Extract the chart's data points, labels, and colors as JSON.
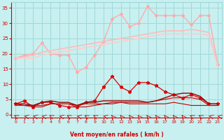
{
  "x": [
    0,
    1,
    2,
    3,
    4,
    5,
    6,
    7,
    8,
    9,
    10,
    11,
    12,
    13,
    14,
    15,
    16,
    17,
    18,
    19,
    20,
    21,
    22,
    23
  ],
  "background_color": "#c8f0f0",
  "grid_color": "#a0d8d8",
  "xlabel": "Vent moyen/en rafales ( km/h )",
  "xlabel_color": "#cc0000",
  "tick_color": "#cc0000",
  "ylim": [
    -1,
    37
  ],
  "xlim": [
    -0.5,
    23.5
  ],
  "yticks": [
    0,
    5,
    10,
    15,
    20,
    25,
    30,
    35
  ],
  "lines": [
    {
      "name": "line1_pink_upper_spiky",
      "color": "#ffaaaa",
      "lw": 1.0,
      "marker": "D",
      "markersize": 2.0,
      "values": [
        18.5,
        19.5,
        20.0,
        23.5,
        20.0,
        19.5,
        19.5,
        14.0,
        15.5,
        19.5,
        24.0,
        31.5,
        33.0,
        29.0,
        30.0,
        35.5,
        32.5,
        32.5,
        32.5,
        32.5,
        29.5,
        32.5,
        32.5,
        16.5
      ]
    },
    {
      "name": "line2_pink_upper_trend",
      "color": "#ffbbbb",
      "lw": 1.2,
      "marker": null,
      "markersize": 0,
      "values": [
        18.5,
        19.0,
        19.5,
        20.5,
        21.0,
        21.5,
        22.0,
        22.5,
        23.0,
        23.5,
        24.0,
        24.5,
        25.0,
        25.5,
        26.0,
        26.5,
        27.0,
        27.5,
        27.5,
        27.5,
        28.0,
        27.5,
        27.0,
        16.0
      ]
    },
    {
      "name": "line3_pink_lower_trend",
      "color": "#ffcccc",
      "lw": 1.2,
      "marker": null,
      "markersize": 0,
      "values": [
        18.5,
        18.5,
        18.5,
        19.5,
        20.0,
        20.5,
        21.0,
        21.5,
        22.0,
        22.5,
        23.0,
        23.5,
        24.0,
        24.5,
        25.0,
        25.5,
        26.0,
        26.5,
        26.5,
        26.5,
        26.5,
        26.5,
        26.0,
        16.0
      ]
    },
    {
      "name": "line4_red_spiky",
      "color": "#dd0000",
      "lw": 0.9,
      "marker": "*",
      "markersize": 3.5,
      "values": [
        3.5,
        4.5,
        2.5,
        4.0,
        4.0,
        3.0,
        2.5,
        2.5,
        4.0,
        4.5,
        9.0,
        12.5,
        9.0,
        7.5,
        10.5,
        10.5,
        9.5,
        7.5,
        6.5,
        5.5,
        6.5,
        5.5,
        3.5,
        3.5
      ]
    },
    {
      "name": "line5_red_upper_flat",
      "color": "#cc0000",
      "lw": 0.8,
      "marker": null,
      "markersize": 0,
      "values": [
        3.0,
        3.0,
        3.0,
        3.0,
        3.5,
        3.5,
        3.5,
        3.0,
        3.5,
        3.5,
        3.5,
        4.0,
        4.0,
        4.0,
        4.0,
        4.0,
        4.5,
        5.0,
        5.5,
        5.5,
        5.5,
        5.0,
        3.0,
        3.0
      ]
    },
    {
      "name": "line6_red_mid_flat",
      "color": "#bb0000",
      "lw": 0.8,
      "marker": null,
      "markersize": 0,
      "values": [
        3.5,
        3.0,
        2.5,
        2.5,
        3.5,
        3.5,
        3.5,
        2.5,
        2.5,
        3.0,
        3.5,
        3.5,
        4.0,
        3.5,
        3.5,
        3.5,
        3.5,
        3.5,
        4.0,
        3.5,
        3.0,
        3.0,
        3.0,
        3.0
      ]
    },
    {
      "name": "line7_dark_flat",
      "color": "#990000",
      "lw": 1.0,
      "marker": null,
      "markersize": 0,
      "values": [
        3.5,
        3.5,
        3.0,
        4.0,
        4.5,
        4.0,
        4.0,
        3.0,
        4.0,
        4.0,
        4.5,
        4.5,
        4.5,
        4.5,
        4.5,
        4.0,
        4.5,
        5.5,
        6.5,
        7.0,
        7.0,
        6.0,
        3.5,
        3.5
      ]
    }
  ],
  "wind_dirs": [
    225,
    247,
    247,
    247,
    225,
    247,
    225,
    247,
    225,
    225,
    247,
    202,
    202,
    202,
    202,
    202,
    202,
    202,
    202,
    202,
    225,
    225,
    247,
    247
  ]
}
